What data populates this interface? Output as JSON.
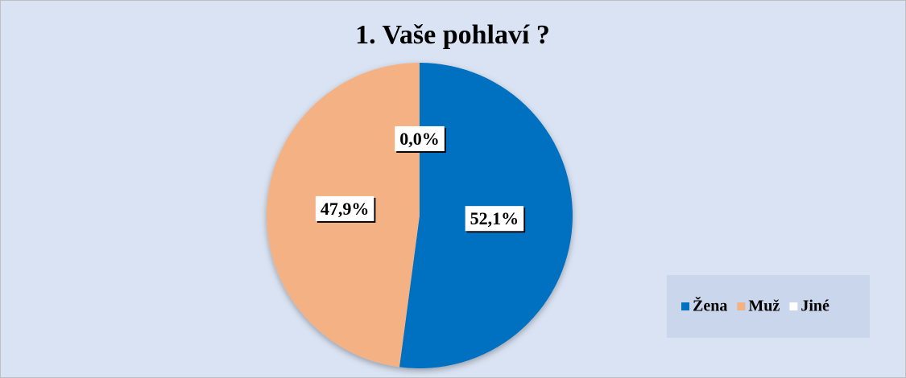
{
  "chart_data": {
    "type": "pie",
    "title": "1. Vaše pohlaví ?",
    "categories": [
      "Žena",
      "Muž",
      "Jiné"
    ],
    "values": [
      52.1,
      47.9,
      0
    ],
    "value_labels": [
      "52,1%",
      "47,9%",
      "0,0%"
    ],
    "colors": [
      "#0070c0",
      "#f4b183",
      "#ffffff"
    ],
    "legend": "right"
  }
}
